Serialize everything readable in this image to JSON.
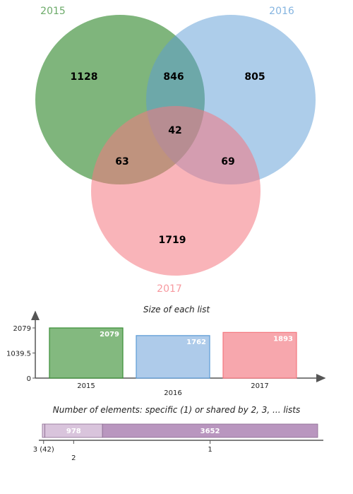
{
  "venn": {
    "sets": [
      {
        "name": "2015",
        "color": "#3a8e36"
      },
      {
        "name": "2016",
        "color": "#5b9bd5"
      },
      {
        "name": "2017",
        "color": "#f4777f"
      }
    ],
    "regions": {
      "only_2015": "1128",
      "only_2016": "805",
      "only_2017": "1719",
      "2015_2016": "846",
      "2015_2017": "63",
      "2016_2017": "69",
      "all": "42"
    }
  },
  "chart_data": [
    {
      "type": "bar",
      "title": "Size of each list",
      "categories": [
        "2015",
        "2016",
        "2017"
      ],
      "values": [
        2079,
        1762,
        1893
      ],
      "yticks": [
        "0",
        "1039.5",
        "2079"
      ],
      "ylim": [
        0,
        2079
      ],
      "colors": [
        "#83b97f",
        "#aecbea",
        "#f7a7ad"
      ],
      "edge_colors": [
        "#3a8e36",
        "#5b9bd5",
        "#f4777f"
      ]
    },
    {
      "type": "bar",
      "orientation": "horizontal-stacked",
      "title": "Number of elements: specific (1) or shared by 2, 3, ... lists",
      "segments": [
        {
          "label": "3 (42)",
          "value": 42,
          "color": "#d9c4dc"
        },
        {
          "label": "2",
          "value": 978,
          "color": "#d9c4dc",
          "text": "978"
        },
        {
          "label": "1",
          "value": 3652,
          "color": "#b996bf",
          "text": "3652"
        }
      ]
    }
  ]
}
